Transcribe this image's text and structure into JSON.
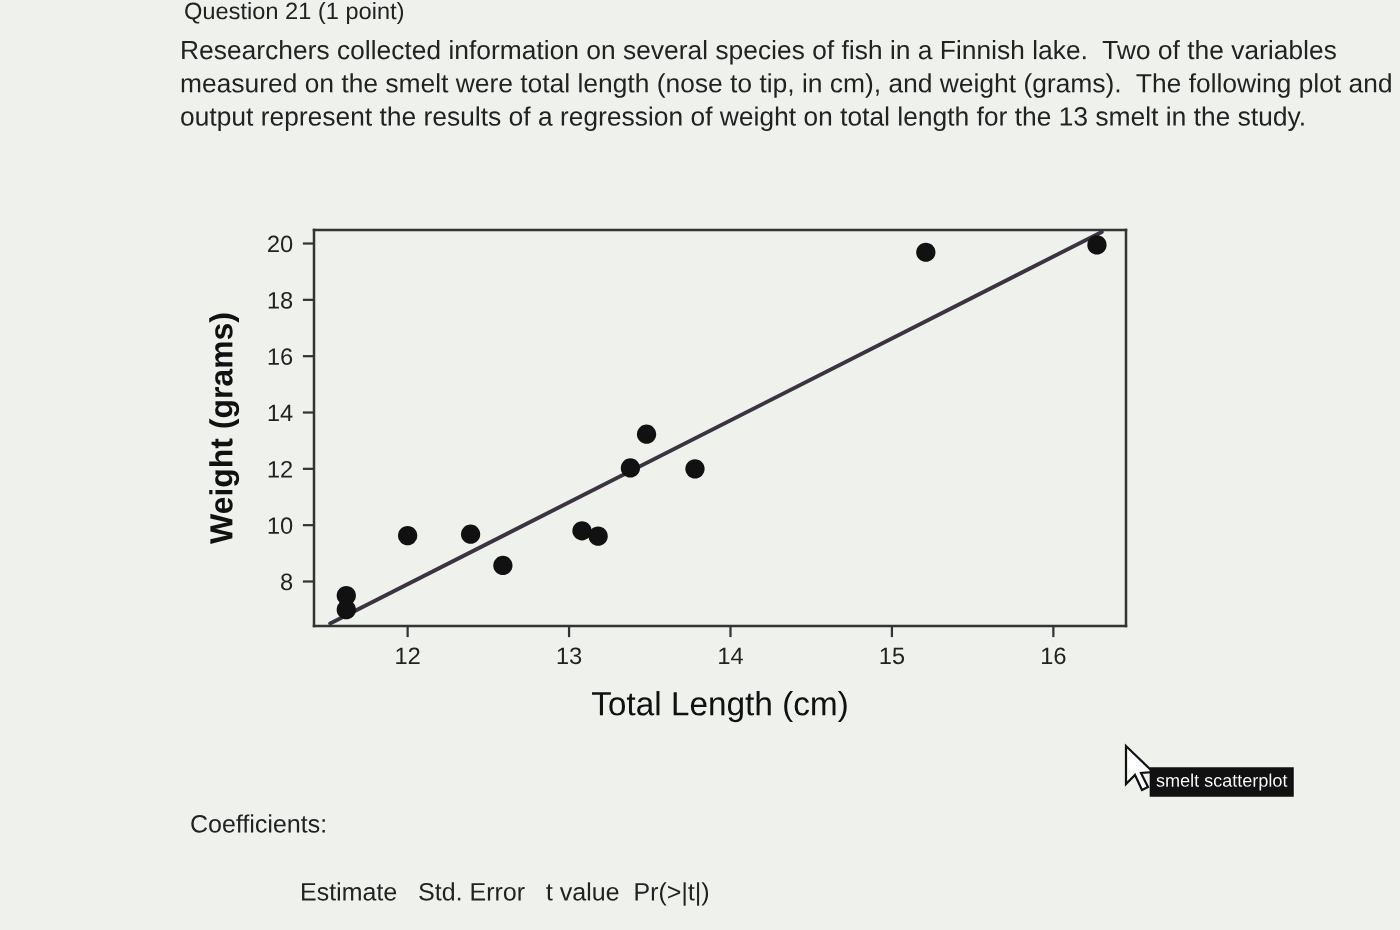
{
  "chart_data": {
    "type": "scatter",
    "title": "Question 21 (1 point)",
    "subtitle": "Researchers collected information on several species of fish in a Finnish lake.  Two of the variables measured on the smelt were total length (nose to tip, in cm), and weight (grams).  The following plot and output represent the results of a regression of weight on total length for the 13 smelt in the study.",
    "xlabel": "Total Length (cm)",
    "ylabel": "Weight (grams)",
    "series": [
      {
        "marker": "circle",
        "color": "#111111",
        "x": [
          11.62,
          11.62,
          12.0,
          12.39,
          12.59,
          13.08,
          13.18,
          13.38,
          13.48,
          13.78,
          15.21,
          16.27
        ],
        "values": [
          7.5,
          7.0,
          9.63,
          9.68,
          8.57,
          9.8,
          9.61,
          12.03,
          13.23,
          12.0,
          19.69,
          19.95
        ]
      },
      {
        "type": "line",
        "line_style": "solid",
        "color": "#3b3340",
        "x": [
          11.52,
          16.3
        ],
        "values": [
          6.51,
          20.41
        ]
      }
    ],
    "xlim": [
      11.42,
      16.45
    ],
    "ylim": [
      6.42,
      20.48
    ],
    "xticks": [
      12,
      13,
      14,
      15,
      16
    ],
    "yticks": [
      8,
      10,
      12,
      14,
      16,
      18,
      20
    ],
    "annotations": [
      "Coefficients:",
      "Estimate   Std. Error   t value  Pr(>|t|)",
      "smelt scatterplot"
    ]
  }
}
